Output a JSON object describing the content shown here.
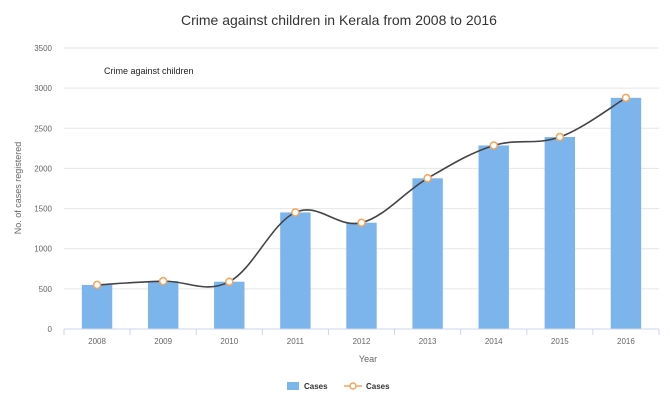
{
  "chart_data": {
    "type": "bar",
    "title": "Crime against children in Kerala from 2008 to 2016",
    "annotation": "Crime against children",
    "xlabel": "Year",
    "ylabel": "No. of cases registered",
    "categories": [
      "2008",
      "2009",
      "2010",
      "2011",
      "2012",
      "2013",
      "2014",
      "2015",
      "2016"
    ],
    "ylim": [
      0,
      3500
    ],
    "yticks": [
      "0",
      "500",
      "1000",
      "1500",
      "2000",
      "2500",
      "3000",
      "3500"
    ],
    "series": [
      {
        "name": "Cases",
        "render": "bar",
        "color": "#7cb5ec",
        "values": [
          549,
          596,
          589,
          1452,
          1324,
          1877,
          2286,
          2391,
          2879
        ]
      },
      {
        "name": "Cases",
        "render": "spline",
        "color": "#f7a35c",
        "line_color": "#434348",
        "values": [
          549,
          596,
          589,
          1452,
          1324,
          1877,
          2286,
          2391,
          2879
        ]
      }
    ],
    "legend": "bottom-center",
    "grid": true
  }
}
